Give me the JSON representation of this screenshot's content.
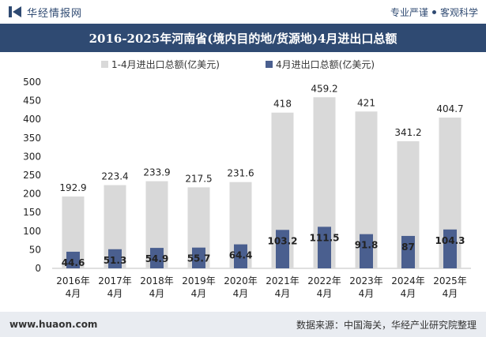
{
  "header": {
    "brand": "华经情报网",
    "tagline_left": "专业严谨",
    "tagline_right": "客观科学"
  },
  "chart_data": {
    "type": "bar",
    "title": "2016-2025年河南省(境内目的地/货源地)4月进出口总额",
    "categories": [
      "2016年\n4月",
      "2017年\n4月",
      "2018年\n4月",
      "2019年\n4月",
      "2020年\n4月",
      "2021年\n4月",
      "2022年\n4月",
      "2023年\n4月",
      "2024年\n4月",
      "2025年\n4月"
    ],
    "series": [
      {
        "name": "1-4月进出口总额(亿美元)",
        "color": "#d9d9d9",
        "values": [
          192.9,
          223.4,
          233.9,
          217.5,
          231.6,
          418,
          459.2,
          421,
          341.2,
          404.7
        ]
      },
      {
        "name": "4月进出口总额(亿美元)",
        "color": "#4a5f8f",
        "values": [
          44.6,
          51.3,
          54.9,
          55.7,
          64.4,
          103.2,
          111.5,
          91.8,
          87,
          104.3
        ]
      }
    ],
    "ylim": [
      0,
      500
    ],
    "yticks": [
      0,
      50,
      100,
      150,
      200,
      250,
      300,
      350,
      400,
      450,
      500
    ],
    "legend_position": "top",
    "grid": false
  },
  "footer": {
    "url": "www.huaon.com",
    "source": "数据来源：中国海关，华经产业研究院整理"
  }
}
